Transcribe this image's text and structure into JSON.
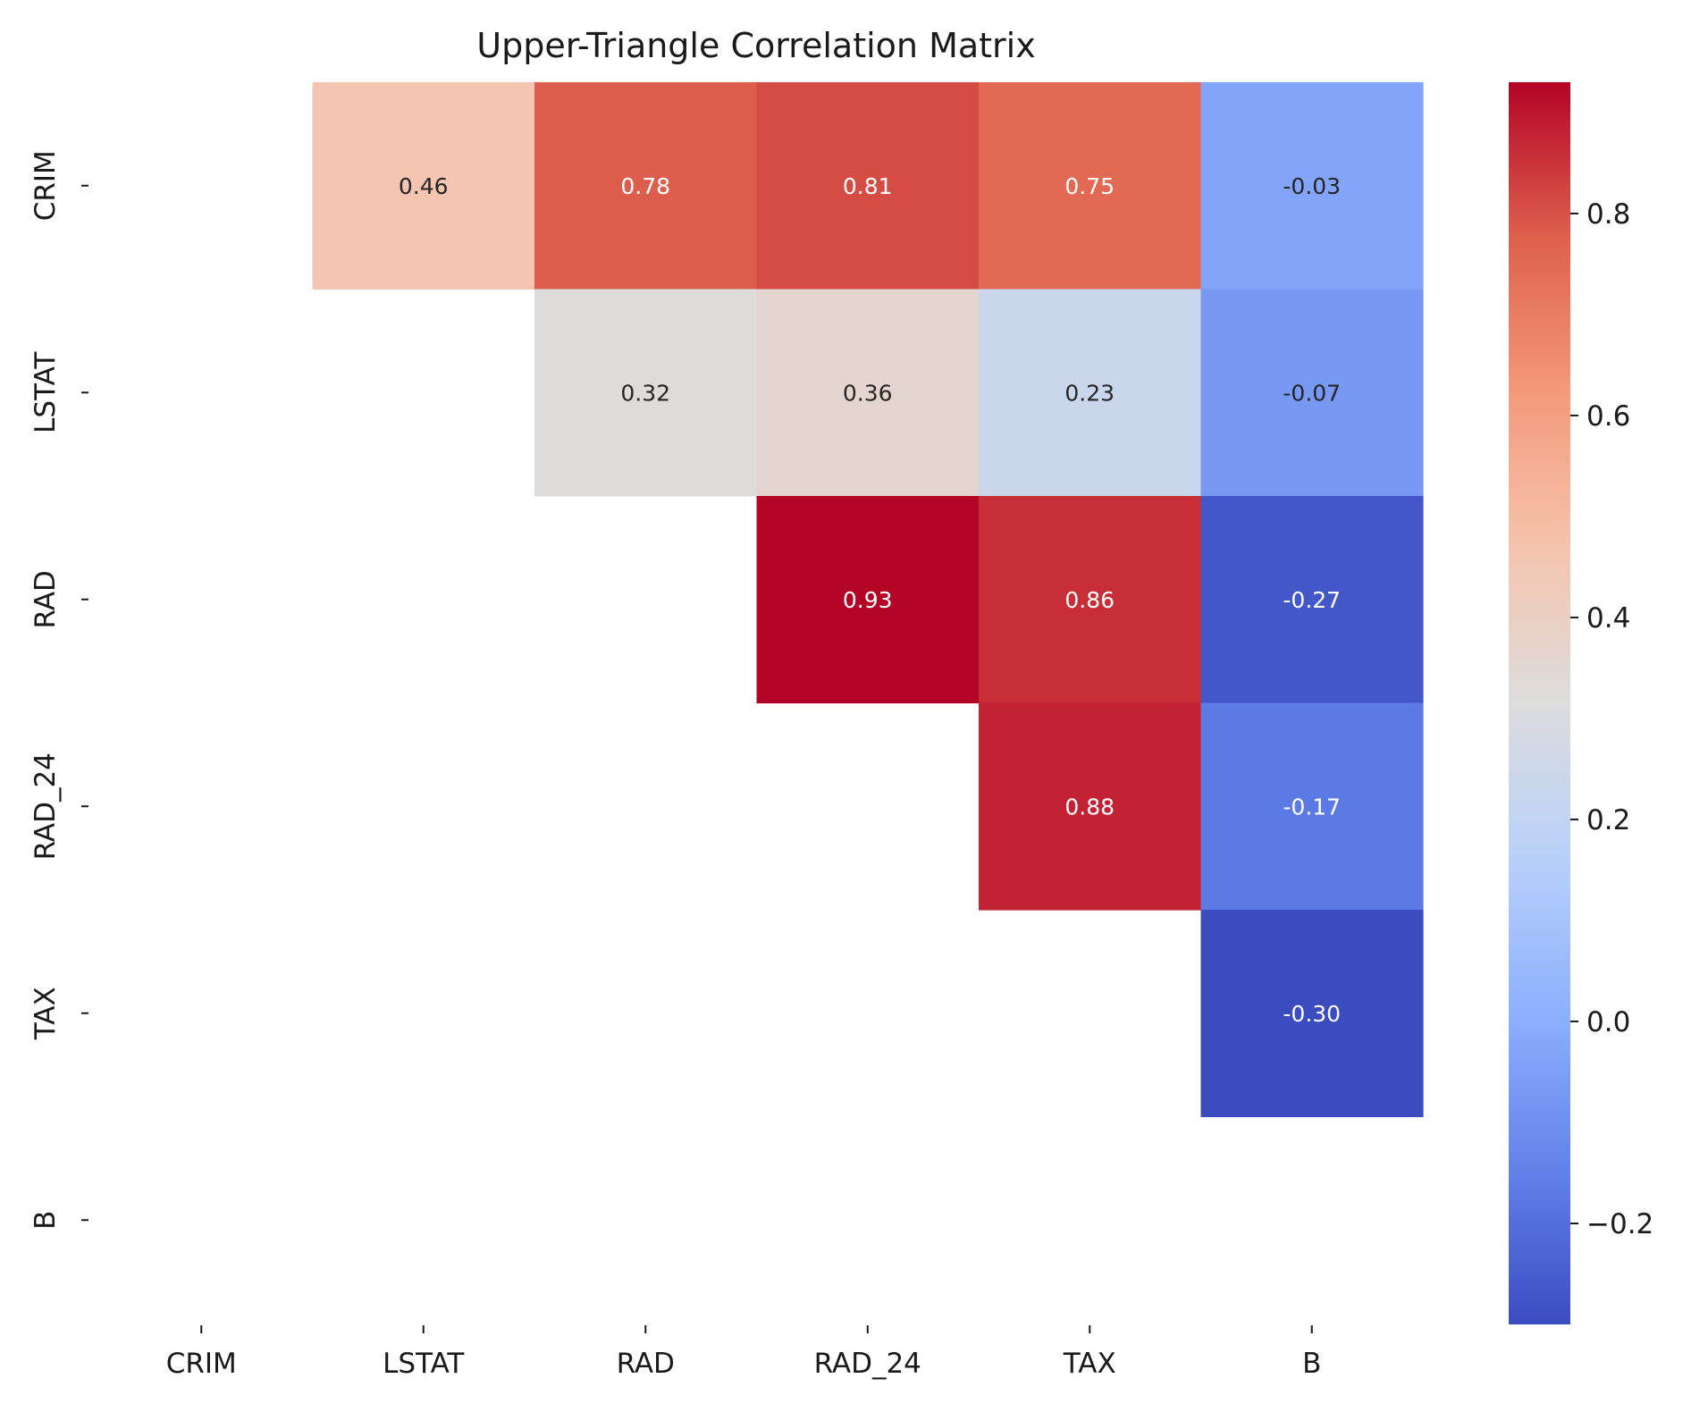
{
  "chart_data": {
    "type": "heatmap",
    "title": "Upper-Triangle Correlation Matrix",
    "xlabel": "",
    "ylabel": "",
    "row_labels": [
      "CRIM",
      "LSTAT",
      "RAD",
      "RAD_24",
      "TAX",
      "B"
    ],
    "col_labels": [
      "CRIM",
      "LSTAT",
      "RAD",
      "RAD_24",
      "TAX",
      "B"
    ],
    "values": [
      [
        null,
        0.46,
        0.78,
        0.81,
        0.75,
        -0.03
      ],
      [
        null,
        null,
        0.32,
        0.36,
        0.23,
        -0.07
      ],
      [
        null,
        null,
        null,
        0.93,
        0.86,
        -0.27
      ],
      [
        null,
        null,
        null,
        null,
        0.88,
        -0.17
      ],
      [
        null,
        null,
        null,
        null,
        null,
        -0.3
      ],
      [
        null,
        null,
        null,
        null,
        null,
        null
      ]
    ],
    "value_format": "2 decimals",
    "colormap": "coolwarm",
    "colorbar": {
      "min": -0.3,
      "max": 0.93,
      "ticks": [
        -0.2,
        0.0,
        0.2,
        0.4,
        0.6,
        0.8
      ],
      "tick_labels": [
        "−0.2",
        "0.0",
        "0.2",
        "0.4",
        "0.6",
        "0.8"
      ]
    },
    "grid": false
  }
}
